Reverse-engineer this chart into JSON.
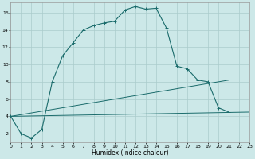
{
  "xlabel": "Humidex (Indice chaleur)",
  "background_color": "#cce8e8",
  "grid_color": "#aacccc",
  "line_color": "#1a6b6b",
  "x_ticks": [
    0,
    1,
    2,
    3,
    4,
    5,
    6,
    7,
    8,
    9,
    10,
    11,
    12,
    13,
    14,
    15,
    16,
    17,
    18,
    19,
    20,
    21,
    22,
    23
  ],
  "y_ticks": [
    2,
    4,
    6,
    8,
    10,
    12,
    14,
    16
  ],
  "xlim": [
    0,
    23
  ],
  "ylim": [
    1.0,
    17.2
  ],
  "main_curve": {
    "x": [
      0,
      1,
      2,
      3,
      4,
      5,
      6,
      7,
      8,
      9,
      10,
      11,
      12,
      13,
      14,
      15,
      16,
      17,
      18,
      19,
      20,
      21,
      22,
      23
    ],
    "y": [
      4.0,
      2.0,
      1.5,
      2.5,
      8.0,
      11.0,
      12.5,
      14.0,
      14.5,
      14.8,
      15.0,
      16.3,
      16.7,
      16.4,
      16.5,
      14.2,
      9.8,
      9.5,
      8.2,
      8.0,
      5.0,
      4.5,
      null,
      null
    ]
  },
  "line1": {
    "x": [
      0,
      21
    ],
    "y": [
      4.0,
      8.2
    ]
  },
  "line2": {
    "x": [
      0,
      23
    ],
    "y": [
      4.0,
      4.5
    ]
  }
}
